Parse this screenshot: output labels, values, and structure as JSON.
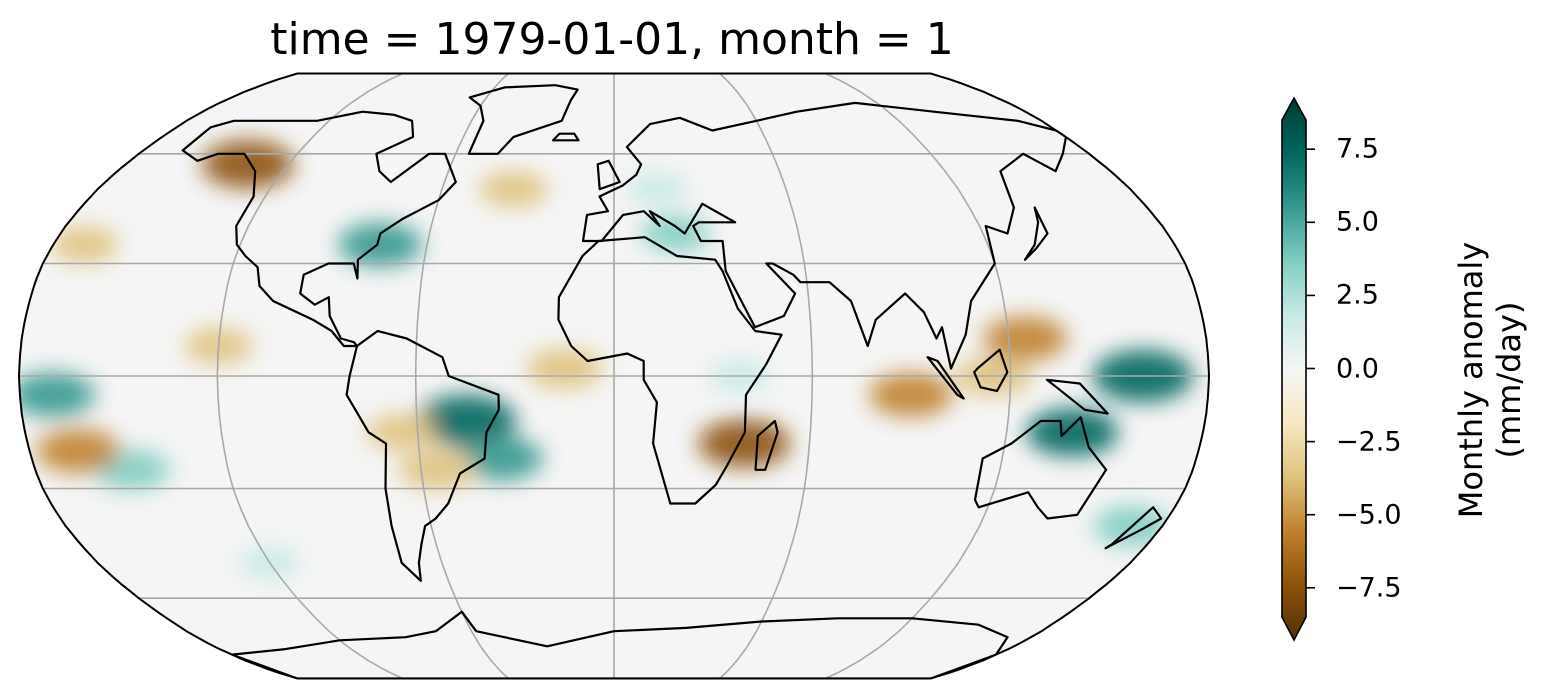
{
  "title": "time = 1979-01-01, month = 1",
  "map": {
    "projection": "Robinson",
    "variable": "Monthly precipitation anomaly",
    "gridlines": true,
    "coastlines": true
  },
  "colorbar": {
    "label_line1": "Monthly anomaly",
    "label_line2": "(mm/day)",
    "colormap": "BrBG",
    "range": [
      -8.5,
      8.5
    ],
    "extend": "both",
    "ticks": [
      {
        "value": 7.5,
        "label": "7.5"
      },
      {
        "value": 5.0,
        "label": "5.0"
      },
      {
        "value": 2.5,
        "label": "2.5"
      },
      {
        "value": 0.0,
        "label": "0.0"
      },
      {
        "value": -2.5,
        "label": "−2.5"
      },
      {
        "value": -5.0,
        "label": "−5.0"
      },
      {
        "value": -7.5,
        "label": "−7.5"
      }
    ],
    "colors": [
      "#543005",
      "#8c510a",
      "#bf812d",
      "#dfc27d",
      "#f6e8c3",
      "#f5f5f5",
      "#c7eae5",
      "#80cdc1",
      "#35978f",
      "#01665e",
      "#003c30"
    ]
  },
  "anomalies": [
    {
      "region": "Western Pacific / Maritime Continent",
      "lon": 160,
      "lat": 0,
      "value": 7
    },
    {
      "region": "Northern Australia",
      "lon": 140,
      "lat": -15,
      "value": 6
    },
    {
      "region": "Central Brazil",
      "lon": -45,
      "lat": -12,
      "value": 7
    },
    {
      "region": "South Atlantic Convergence Zone",
      "lon": -35,
      "lat": -22,
      "value": 5
    },
    {
      "region": "US East Coast",
      "lon": -75,
      "lat": 35,
      "value": 5
    },
    {
      "region": "Central Pacific Equator",
      "lon": -170,
      "lat": -5,
      "value": 5
    },
    {
      "region": "South Pacific",
      "lon": -150,
      "lat": -25,
      "value": 4
    },
    {
      "region": "Indian Ocean",
      "lon": 90,
      "lat": -5,
      "value": -5
    },
    {
      "region": "Philippines",
      "lon": 125,
      "lat": 10,
      "value": -5
    },
    {
      "region": "Borneo",
      "lon": 115,
      "lat": 0,
      "value": -4
    },
    {
      "region": "Mozambique Channel",
      "lon": 40,
      "lat": -18,
      "value": -6
    },
    {
      "region": "Southeast Pacific",
      "lon": -165,
      "lat": -20,
      "value": -5
    },
    {
      "region": "Tropical Atlantic",
      "lon": -15,
      "lat": 2,
      "value": -4
    },
    {
      "region": "Southern Brazil",
      "lon": -55,
      "lat": -25,
      "value": -4
    },
    {
      "region": "Alaska Coast",
      "lon": -135,
      "lat": 57,
      "value": -6
    },
    {
      "region": "North Pacific",
      "lon": -170,
      "lat": 35,
      "value": -3
    },
    {
      "region": "North Atlantic",
      "lon": -35,
      "lat": 50,
      "value": -3
    },
    {
      "region": "Eastern Pacific ITCZ",
      "lon": -120,
      "lat": 8,
      "value": -3
    },
    {
      "region": "Europe",
      "lon": 15,
      "lat": 50,
      "value": 2
    },
    {
      "region": "Mediterranean",
      "lon": 20,
      "lat": 38,
      "value": 3
    },
    {
      "region": "East Africa",
      "lon": 38,
      "lat": 0,
      "value": 2
    },
    {
      "region": "Bolivia",
      "lon": -65,
      "lat": -15,
      "value": -3
    },
    {
      "region": "Southern Ocean Pacific",
      "lon": -120,
      "lat": -50,
      "value": 2
    },
    {
      "region": "New Zealand Sea",
      "lon": 170,
      "lat": -40,
      "value": 4
    }
  ],
  "land_polygons": [
    {
      "name": "North America",
      "points": [
        [
          -166,
          68
        ],
        [
          -160,
          70
        ],
        [
          -140,
          70
        ],
        [
          -125,
          70
        ],
        [
          -110,
          73
        ],
        [
          -95,
          72
        ],
        [
          -85,
          70
        ],
        [
          -80,
          65
        ],
        [
          -90,
          60
        ],
        [
          -85,
          55
        ],
        [
          -79,
          52
        ],
        [
          -70,
          60
        ],
        [
          -64,
          60
        ],
        [
          -56,
          52
        ],
        [
          -60,
          47
        ],
        [
          -66,
          44
        ],
        [
          -70,
          42
        ],
        [
          -76,
          38
        ],
        [
          -76,
          35
        ],
        [
          -81,
          31
        ],
        [
          -80,
          26
        ],
        [
          -82,
          30
        ],
        [
          -90,
          30
        ],
        [
          -97,
          27
        ],
        [
          -97,
          22
        ],
        [
          -92,
          19
        ],
        [
          -88,
          21
        ],
        [
          -87,
          16
        ],
        [
          -83,
          10
        ],
        [
          -79,
          9
        ],
        [
          -78,
          8
        ],
        [
          -82,
          8
        ],
        [
          -86,
          12
        ],
        [
          -92,
          15
        ],
        [
          -105,
          20
        ],
        [
          -110,
          24
        ],
        [
          -112,
          29
        ],
        [
          -117,
          32
        ],
        [
          -121,
          35
        ],
        [
          -124,
          40
        ],
        [
          -124,
          48
        ],
        [
          -130,
          55
        ],
        [
          -140,
          60
        ],
        [
          -150,
          60
        ],
        [
          -155,
          58
        ],
        [
          -165,
          61
        ],
        [
          -166,
          68
        ]
      ]
    },
    {
      "name": "Greenland",
      "points": [
        [
          -55,
          60
        ],
        [
          -44,
          60
        ],
        [
          -40,
          65
        ],
        [
          -22,
          70
        ],
        [
          -20,
          77
        ],
        [
          -18,
          81
        ],
        [
          -30,
          83
        ],
        [
          -55,
          82
        ],
        [
          -68,
          78
        ],
        [
          -60,
          75
        ],
        [
          -55,
          70
        ],
        [
          -55,
          60
        ]
      ]
    },
    {
      "name": "South America",
      "points": [
        [
          -78,
          8
        ],
        [
          -72,
          12
        ],
        [
          -63,
          10
        ],
        [
          -52,
          5
        ],
        [
          -50,
          0
        ],
        [
          -44,
          -2
        ],
        [
          -35,
          -5
        ],
        [
          -35,
          -9
        ],
        [
          -39,
          -15
        ],
        [
          -40,
          -22
        ],
        [
          -48,
          -26
        ],
        [
          -53,
          -34
        ],
        [
          -58,
          -38
        ],
        [
          -62,
          -40
        ],
        [
          -65,
          -45
        ],
        [
          -68,
          -50
        ],
        [
          -70,
          -55
        ],
        [
          -74,
          -50
        ],
        [
          -73,
          -40
        ],
        [
          -72,
          -30
        ],
        [
          -70,
          -18
        ],
        [
          -75,
          -15
        ],
        [
          -81,
          -5
        ],
        [
          -80,
          0
        ],
        [
          -78,
          8
        ]
      ]
    },
    {
      "name": "Africa",
      "points": [
        [
          -17,
          21
        ],
        [
          -10,
          32
        ],
        [
          -5,
          36
        ],
        [
          10,
          37
        ],
        [
          20,
          32
        ],
        [
          32,
          31
        ],
        [
          34,
          28
        ],
        [
          38,
          18
        ],
        [
          43,
          12
        ],
        [
          51,
          11
        ],
        [
          46,
          3
        ],
        [
          40,
          -5
        ],
        [
          40,
          -15
        ],
        [
          35,
          -24
        ],
        [
          32,
          -29
        ],
        [
          26,
          -34
        ],
        [
          18,
          -34
        ],
        [
          12,
          -18
        ],
        [
          13,
          -7
        ],
        [
          9,
          -1
        ],
        [
          9,
          4
        ],
        [
          4,
          6
        ],
        [
          -8,
          4
        ],
        [
          -13,
          8
        ],
        [
          -17,
          15
        ],
        [
          -17,
          21
        ]
      ]
    },
    {
      "name": "Madagascar",
      "points": [
        [
          44,
          -25
        ],
        [
          47,
          -25
        ],
        [
          50,
          -15
        ],
        [
          49,
          -12
        ],
        [
          44,
          -16
        ],
        [
          44,
          -25
        ]
      ]
    },
    {
      "name": "Eurasia",
      "points": [
        [
          -10,
          36
        ],
        [
          -9,
          43
        ],
        [
          -2,
          44
        ],
        [
          -5,
          48
        ],
        [
          3,
          51
        ],
        [
          8,
          54
        ],
        [
          10,
          57
        ],
        [
          5,
          62
        ],
        [
          15,
          69
        ],
        [
          28,
          71
        ],
        [
          40,
          67
        ],
        [
          60,
          70
        ],
        [
          80,
          73
        ],
        [
          110,
          76
        ],
        [
          140,
          73
        ],
        [
          170,
          70
        ],
        [
          180,
          67
        ],
        [
          180,
          65
        ],
        [
          170,
          60
        ],
        [
          160,
          55
        ],
        [
          155,
          60
        ],
        [
          140,
          55
        ],
        [
          135,
          45
        ],
        [
          128,
          38
        ],
        [
          122,
          40
        ],
        [
          120,
          30
        ],
        [
          110,
          20
        ],
        [
          107,
          11
        ],
        [
          102,
          2
        ],
        [
          100,
          13
        ],
        [
          98,
          10
        ],
        [
          95,
          17
        ],
        [
          90,
          22
        ],
        [
          80,
          15
        ],
        [
          77,
          8
        ],
        [
          73,
          20
        ],
        [
          67,
          25
        ],
        [
          58,
          25
        ],
        [
          56,
          27
        ],
        [
          50,
          30
        ],
        [
          48,
          30
        ],
        [
          56,
          22
        ],
        [
          52,
          16
        ],
        [
          43,
          13
        ],
        [
          35,
          28
        ],
        [
          35,
          36
        ],
        [
          28,
          36
        ],
        [
          26,
          40
        ],
        [
          28,
          41
        ],
        [
          40,
          41
        ],
        [
          30,
          46
        ],
        [
          23,
          38
        ],
        [
          20,
          40
        ],
        [
          12,
          44
        ],
        [
          15,
          40
        ],
        [
          10,
          44
        ],
        [
          3,
          43
        ],
        [
          -4,
          36
        ],
        [
          -10,
          36
        ]
      ]
    },
    {
      "name": "Australia",
      "points": [
        [
          114,
          -22
        ],
        [
          122,
          -18
        ],
        [
          130,
          -12
        ],
        [
          136,
          -12
        ],
        [
          137,
          -16
        ],
        [
          142,
          -11
        ],
        [
          146,
          -19
        ],
        [
          153,
          -25
        ],
        [
          150,
          -37
        ],
        [
          141,
          -38
        ],
        [
          136,
          -35
        ],
        [
          131,
          -31
        ],
        [
          117,
          -35
        ],
        [
          115,
          -33
        ],
        [
          114,
          -22
        ]
      ]
    },
    {
      "name": "Antarctica",
      "points": [
        [
          -180,
          -78
        ],
        [
          -150,
          -76
        ],
        [
          -120,
          -73
        ],
        [
          -90,
          -72
        ],
        [
          -75,
          -70
        ],
        [
          -60,
          -64
        ],
        [
          -58,
          -70
        ],
        [
          -30,
          -75
        ],
        [
          0,
          -70
        ],
        [
          30,
          -69
        ],
        [
          60,
          -67
        ],
        [
          90,
          -66
        ],
        [
          120,
          -66
        ],
        [
          150,
          -68
        ],
        [
          170,
          -72
        ],
        [
          180,
          -78
        ],
        [
          180,
          -90
        ],
        [
          -180,
          -90
        ],
        [
          -180,
          -78
        ]
      ]
    },
    {
      "name": "Borneo",
      "points": [
        [
          109,
          1
        ],
        [
          111,
          -3
        ],
        [
          116,
          -4
        ],
        [
          119,
          1
        ],
        [
          117,
          7
        ],
        [
          110,
          2
        ],
        [
          109,
          1
        ]
      ]
    },
    {
      "name": "Sumatra",
      "points": [
        [
          95,
          5
        ],
        [
          98,
          4
        ],
        [
          106,
          -6
        ],
        [
          104,
          -5
        ],
        [
          95,
          5
        ]
      ]
    },
    {
      "name": "New Guinea",
      "points": [
        [
          131,
          -1
        ],
        [
          141,
          -2
        ],
        [
          150,
          -10
        ],
        [
          143,
          -9
        ],
        [
          134,
          -3
        ],
        [
          131,
          -1
        ]
      ]
    },
    {
      "name": "Japan",
      "points": [
        [
          130,
          31
        ],
        [
          135,
          34
        ],
        [
          141,
          38
        ],
        [
          142,
          45
        ],
        [
          140,
          41
        ],
        [
          135,
          35
        ],
        [
          130,
          31
        ]
      ]
    },
    {
      "name": "British Isles",
      "points": [
        [
          -5,
          50
        ],
        [
          2,
          52
        ],
        [
          -2,
          58
        ],
        [
          -6,
          57
        ],
        [
          -5,
          50
        ]
      ]
    },
    {
      "name": "New Zealand",
      "points": [
        [
          167,
          -46
        ],
        [
          174,
          -41
        ],
        [
          178,
          -38
        ],
        [
          173,
          -35
        ],
        [
          168,
          -45
        ],
        [
          167,
          -46
        ]
      ]
    },
    {
      "name": "Iceland",
      "points": [
        [
          -24,
          64
        ],
        [
          -14,
          64
        ],
        [
          -16,
          66
        ],
        [
          -22,
          66
        ],
        [
          -24,
          64
        ]
      ]
    }
  ]
}
